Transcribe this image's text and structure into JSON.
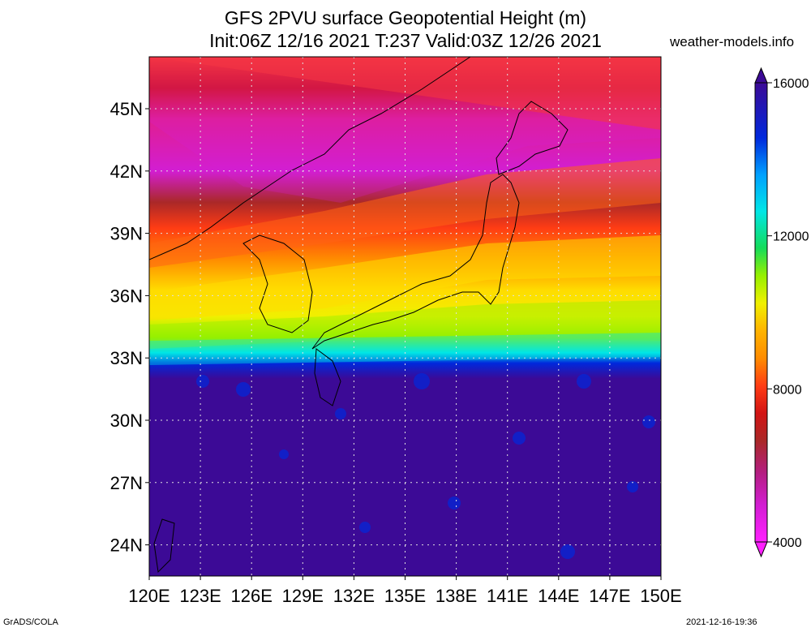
{
  "header": {
    "title_line1": "GFS 2PVU surface Geopotential Height (m)",
    "title_line2": "Init:06Z 12/16 2021 T:237 Valid:03Z 12/26 2021",
    "site": "weather-models.info"
  },
  "footer": {
    "left": "GrADS/COLA",
    "right": "2021-12-16-19:36"
  },
  "map": {
    "lon_range": [
      120,
      150
    ],
    "lat_range": [
      22.5,
      47.5
    ],
    "lon_ticks": [
      "120E",
      "123E",
      "126E",
      "129E",
      "132E",
      "135E",
      "138E",
      "141E",
      "144E",
      "147E",
      "150E"
    ],
    "lat_ticks": [
      "24N",
      "27N",
      "30N",
      "33N",
      "36N",
      "39N",
      "42N",
      "45N"
    ],
    "grid": true
  },
  "colorbar": {
    "labels": [
      "4000",
      "8000",
      "12000",
      "16000"
    ],
    "colors": [
      "#ff20ff",
      "#d21ed2",
      "#b41e82",
      "#aa2828",
      "#d21414",
      "#f01e1e",
      "#ff3c14",
      "#ff6414",
      "#ff8c00",
      "#ffb400",
      "#ffdc00",
      "#f0f000",
      "#c8f000",
      "#96f000",
      "#50e650",
      "#14dc5a",
      "#00e6a0",
      "#00e6e6",
      "#00c8ff",
      "#00a0ff",
      "#0078ff",
      "#0050f0",
      "#0028dc",
      "#1e14c8",
      "#3c0a96"
    ]
  }
}
